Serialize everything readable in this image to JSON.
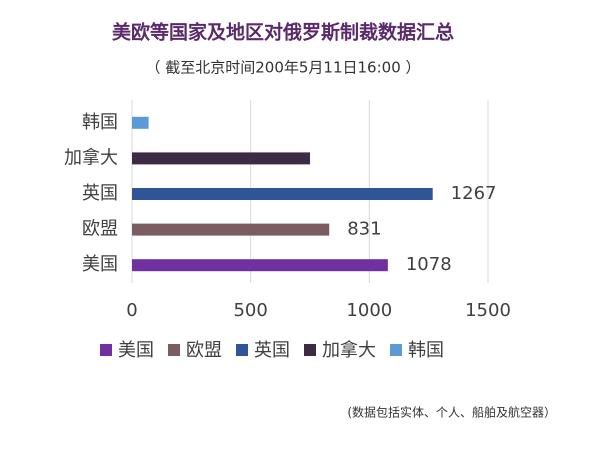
{
  "chart_data": {
    "type": "hbar",
    "title": "美欧等国家及地区对俄罗斯制裁数据汇总",
    "subtitle": "（ 截至北京时间200年5月11日16:00 ）",
    "footnote": "(数据包括实体、个人、船舶及航空器）",
    "categories": [
      "美国",
      "欧盟",
      "英国",
      "加拿大",
      "韩国"
    ],
    "values": [
      1078,
      831,
      1267,
      750,
      70
    ],
    "value_labels": [
      "1078",
      "831",
      "1267",
      null,
      null
    ],
    "colors": [
      "#7030a0",
      "#7a5c61",
      "#2f5597",
      "#3d2a45",
      "#5b9bd5"
    ],
    "xlim": [
      0,
      1500
    ],
    "xticks": [
      0,
      500,
      1000,
      1500
    ],
    "grid": true,
    "legend": "bottom"
  }
}
